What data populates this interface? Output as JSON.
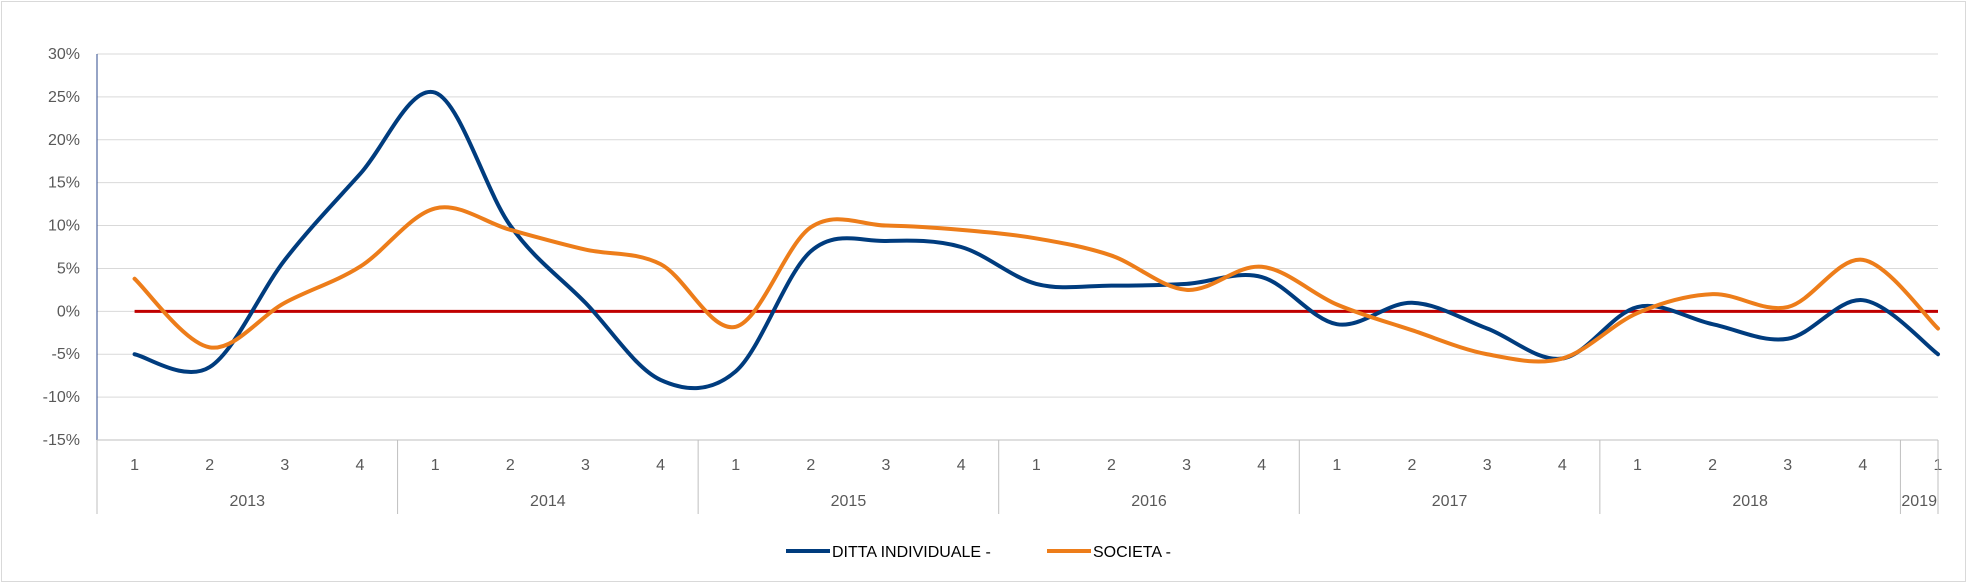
{
  "chart_data": {
    "type": "line",
    "title": "",
    "xlabel": "",
    "ylabel": "",
    "ylim": [
      -15,
      30
    ],
    "y_ticks": [
      "30%",
      "25%",
      "20%",
      "15%",
      "10%",
      "5%",
      "0%",
      "-5%",
      "-10%",
      "-15%"
    ],
    "y_tick_values": [
      30,
      25,
      20,
      15,
      10,
      5,
      0,
      -5,
      -10,
      -15
    ],
    "grid": true,
    "legend_position": "bottom",
    "categories": [
      "1",
      "2",
      "3",
      "4",
      "1",
      "2",
      "3",
      "4",
      "1",
      "2",
      "3",
      "4",
      "1",
      "2",
      "3",
      "4",
      "1",
      "2",
      "3",
      "4",
      "1",
      "2",
      "3",
      "4",
      "1"
    ],
    "year_groups": [
      {
        "label": "2013",
        "count": 4
      },
      {
        "label": "2014",
        "count": 4
      },
      {
        "label": "2015",
        "count": 4
      },
      {
        "label": "2016",
        "count": 4
      },
      {
        "label": "2017",
        "count": 4
      },
      {
        "label": "2018",
        "count": 4
      },
      {
        "label": "2019",
        "count": 1
      }
    ],
    "series": [
      {
        "name": "DITTA INDIVIDUALE -",
        "color": "#003c7e",
        "values": [
          -5,
          -6.5,
          6,
          16,
          25.5,
          10,
          1,
          -8,
          -7,
          7,
          8.2,
          7.5,
          3.2,
          3,
          3.2,
          4,
          -1.5,
          1,
          -2,
          -5.5,
          0.5,
          -1.5,
          -3.2,
          1.3,
          -5
        ]
      },
      {
        "name": "SOCIETA -",
        "color": "#ed7d1a",
        "values": [
          3.8,
          -4.2,
          1,
          5.2,
          12,
          9.5,
          7.2,
          5.5,
          -1.8,
          9.8,
          10,
          9.5,
          8.5,
          6.5,
          2.5,
          5.2,
          0.8,
          -2.2,
          -5,
          -5.5,
          -0.2,
          2,
          0.5,
          6,
          -2
        ]
      }
    ],
    "reference_line": {
      "value": 0,
      "color": "#c00000"
    }
  }
}
